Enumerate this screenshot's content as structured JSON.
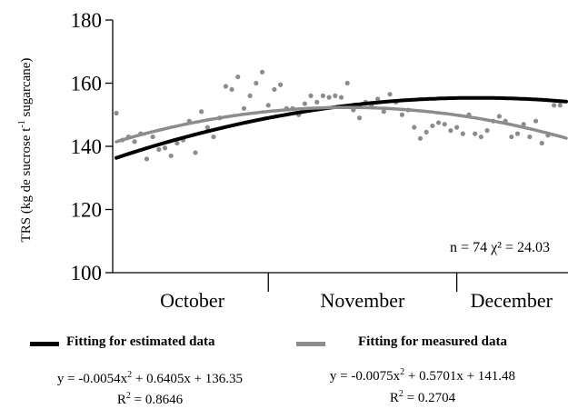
{
  "chart_data": {
    "type": "scatter",
    "ylabel": "TRS (kg de sucrose t⁻¹ sugarcane)",
    "ylim": [
      100,
      180
    ],
    "yticks": [
      "100",
      "120",
      "140",
      "160",
      "180"
    ],
    "x_range": [
      0,
      74
    ],
    "month_labels": [
      "October",
      "November",
      "December"
    ],
    "month_dividers": [
      25,
      56
    ],
    "annotation": "n = 74  χ² = 24.03",
    "series": [
      {
        "name": "Fitting for estimated data",
        "color": "#000000",
        "fit": {
          "a": -0.0054,
          "b": 0.6405,
          "c": 136.35
        },
        "equation": "y = -0.0054x² + 0.6405x + 136.35",
        "r2": "R² = 0.8646"
      },
      {
        "name": "Fitting for measured data",
        "color": "#8c8c8c",
        "fit": {
          "a": -0.0075,
          "b": 0.5701,
          "c": 141.48
        },
        "equation": "y = -0.0075x² + 0.5701x + 141.48",
        "r2": "R² = 0.2704"
      }
    ],
    "points": [
      [
        0,
        150.5
      ],
      [
        1,
        142
      ],
      [
        2,
        143
      ],
      [
        3,
        141.5
      ],
      [
        4,
        144
      ],
      [
        5,
        136
      ],
      [
        6,
        143
      ],
      [
        7,
        139
      ],
      [
        8,
        139.5
      ],
      [
        9,
        137
      ],
      [
        10,
        141
      ],
      [
        11,
        142
      ],
      [
        12,
        148
      ],
      [
        13,
        138
      ],
      [
        14,
        151
      ],
      [
        15,
        146
      ],
      [
        16,
        143
      ],
      [
        17,
        149
      ],
      [
        18,
        159
      ],
      [
        19,
        158
      ],
      [
        20,
        162
      ],
      [
        21,
        152
      ],
      [
        22,
        156
      ],
      [
        23,
        160
      ],
      [
        24,
        163.5
      ],
      [
        25,
        153
      ],
      [
        26,
        158
      ],
      [
        27,
        159.5
      ],
      [
        28,
        152
      ],
      [
        29,
        152
      ],
      [
        30,
        150
      ],
      [
        31,
        153.5
      ],
      [
        32,
        156
      ],
      [
        33,
        154
      ],
      [
        34,
        156
      ],
      [
        35,
        155.5
      ],
      [
        36,
        156
      ],
      [
        37,
        155.5
      ],
      [
        38,
        160
      ],
      [
        39,
        151.5
      ],
      [
        40,
        149
      ],
      [
        41,
        154
      ],
      [
        42,
        153
      ],
      [
        43,
        155
      ],
      [
        44,
        151
      ],
      [
        45,
        156.5
      ],
      [
        46,
        154
      ],
      [
        47,
        150
      ],
      [
        48,
        151.5
      ],
      [
        49,
        146
      ],
      [
        50,
        142.5
      ],
      [
        51,
        144.5
      ],
      [
        52,
        146.5
      ],
      [
        53,
        147.5
      ],
      [
        54,
        147
      ],
      [
        55,
        145
      ],
      [
        56,
        146
      ],
      [
        57,
        144
      ],
      [
        58,
        150
      ],
      [
        59,
        144
      ],
      [
        60,
        143
      ],
      [
        61,
        145
      ],
      [
        62,
        148
      ],
      [
        63,
        149.5
      ],
      [
        64,
        148
      ],
      [
        65,
        143
      ],
      [
        66,
        144
      ],
      [
        67,
        147
      ],
      [
        68,
        143
      ],
      [
        69,
        148
      ],
      [
        70,
        141
      ],
      [
        71,
        143.5
      ],
      [
        72,
        153
      ],
      [
        73,
        153
      ]
    ],
    "point_color": "#8c8c8c"
  }
}
